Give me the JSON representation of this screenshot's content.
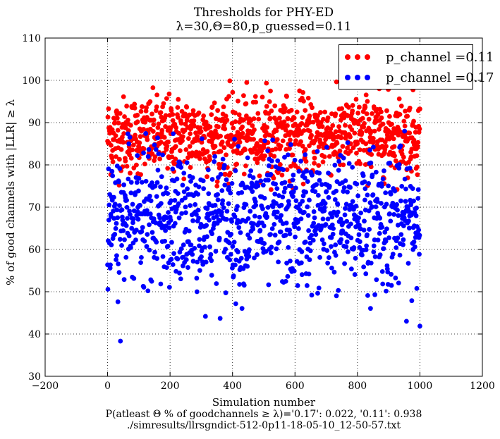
{
  "chart_data": {
    "type": "scatter",
    "title": "Thresholds for PHY-ED",
    "subtitle": "λ=30,Θ=80,p_guessed=0.11",
    "xlabel": "Simulation number",
    "ylabel": "% of good channels with |LLR| ≥ λ",
    "caption_line1": "P(atleast Θ % of goodchannels ≥ λ)='0.17': 0.022, '0.11': 0.938",
    "caption_line2": "./simresults/llrsgndict-512-0p11-18-05-10_12-50-57.txt",
    "xlim": [
      -200,
      1200
    ],
    "ylim": [
      30,
      110
    ],
    "xticks": [
      -200,
      0,
      200,
      400,
      600,
      800,
      1000,
      1200
    ],
    "yticks": [
      30,
      40,
      50,
      60,
      70,
      80,
      90,
      100,
      110
    ],
    "grid": true,
    "legend_position": "top-right",
    "series": [
      {
        "name": "p_channel =0.11",
        "color": "#ff0000",
        "n_points": 1000,
        "x_range": [
          0,
          1000
        ],
        "y_center": 87,
        "y_min": 74,
        "y_max": 100
      },
      {
        "name": "p_channel =0.17",
        "color": "#0000ff",
        "n_points": 1000,
        "x_range": [
          0,
          1000
        ],
        "y_center": 67,
        "y_min": 37.5,
        "y_max": 88
      }
    ]
  }
}
